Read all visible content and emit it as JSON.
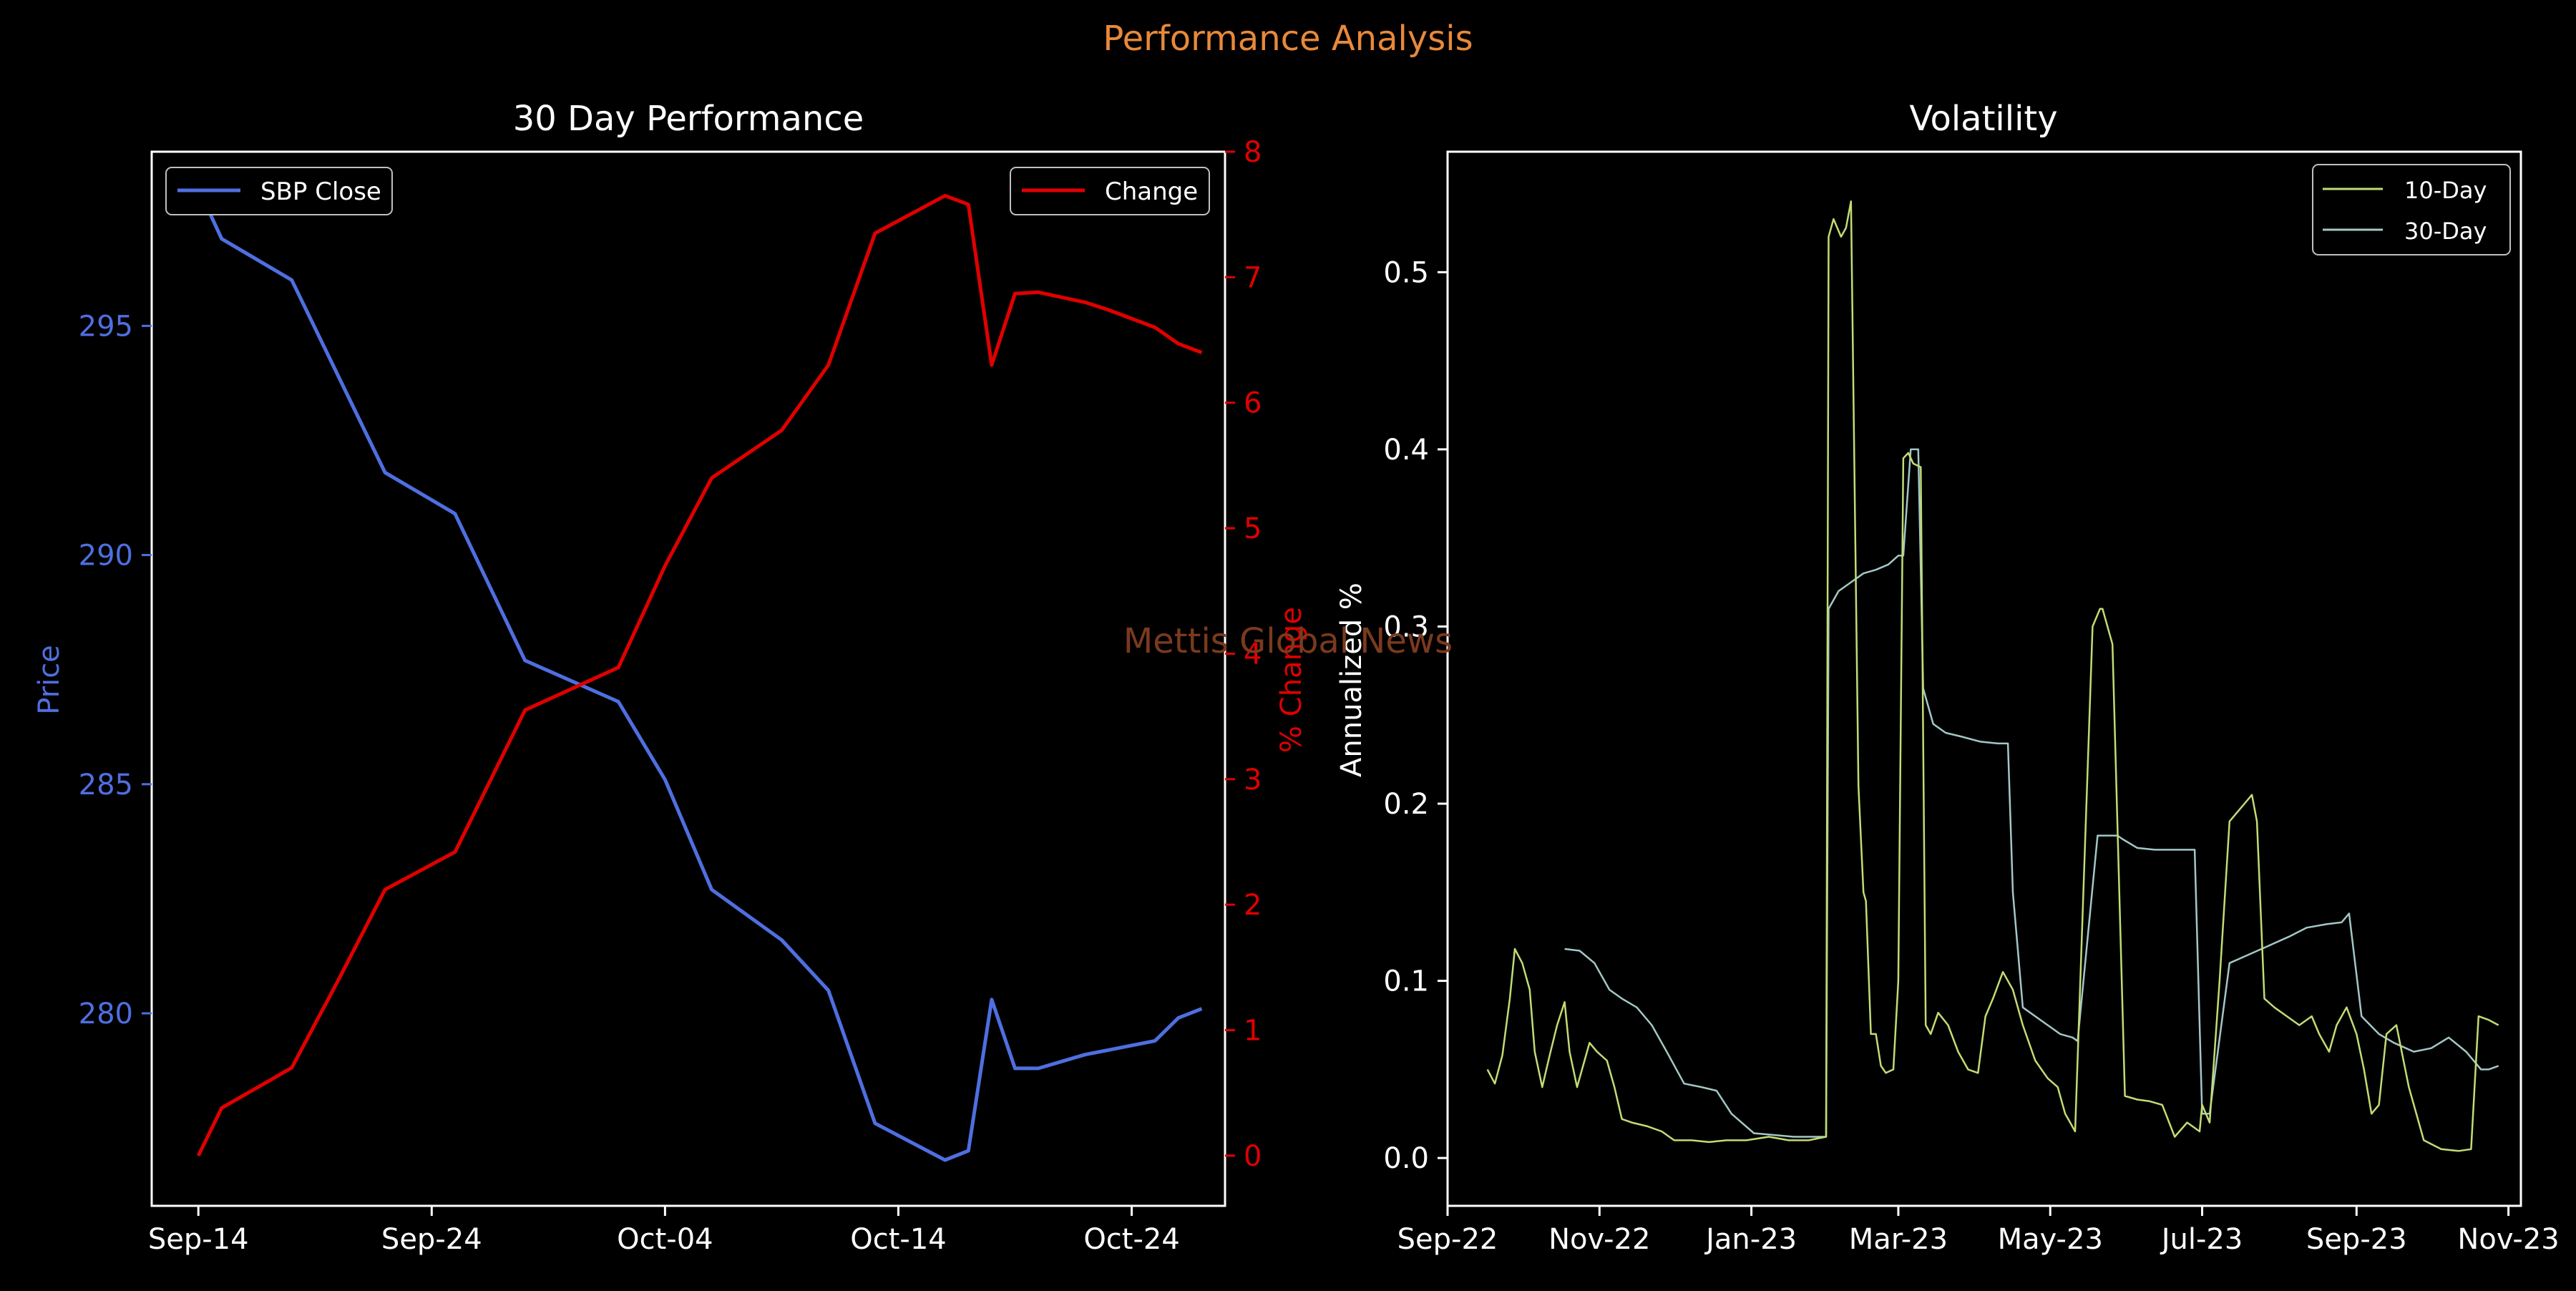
{
  "figure": {
    "suptitle": "Performance Analysis",
    "watermark": "Mettis Global News",
    "colors": {
      "background": "#000000",
      "suptitle": "#E8893A",
      "watermark": "#7A3A1E",
      "price": "#4F6FE0",
      "change": "#E00000",
      "vol10": "#C2DC74",
      "vol30": "#A3C7C6",
      "text": "#FFFFFF"
    }
  },
  "chart_data": [
    {
      "type": "line",
      "title": "30 Day Performance",
      "xlabel": "",
      "ylabel": "Price",
      "y2label": "% Change",
      "x_tick_labels": [
        "Sep-14",
        "Sep-24",
        "Oct-04",
        "Oct-14",
        "Oct-24"
      ],
      "x_ticks": [
        "2024-09-14",
        "2024-09-24",
        "2024-10-04",
        "2024-10-14",
        "2024-10-24"
      ],
      "xlim": [
        "2024-09-12",
        "2024-10-28"
      ],
      "ylim": [
        275.8,
        298.8
      ],
      "y_ticks": [
        280,
        285,
        290,
        295
      ],
      "y2lim": [
        -0.4,
        8.0
      ],
      "y2_ticks": [
        0,
        1,
        2,
        3,
        4,
        5,
        6,
        7,
        8
      ],
      "grid": false,
      "legend": [
        {
          "label": "SBP Close",
          "placement": "upper-left"
        },
        {
          "label": "Change",
          "placement": "upper-right"
        }
      ],
      "series": [
        {
          "name": "SBP Close",
          "axis": "left",
          "x": [
            "2024-09-14",
            "2024-09-15",
            "2024-09-18",
            "2024-09-20",
            "2024-09-22",
            "2024-09-25",
            "2024-09-28",
            "2024-10-02",
            "2024-10-04",
            "2024-10-06",
            "2024-10-09",
            "2024-10-11",
            "2024-10-13",
            "2024-10-16",
            "2024-10-17",
            "2024-10-18",
            "2024-10-19",
            "2024-10-20",
            "2024-10-22",
            "2024-10-23",
            "2024-10-25",
            "2024-10-26",
            "2024-10-27"
          ],
          "values": [
            298.0,
            296.9,
            296.0,
            293.9,
            291.8,
            290.9,
            287.7,
            286.8,
            285.1,
            282.7,
            281.6,
            280.5,
            277.6,
            276.8,
            277.0,
            280.3,
            278.8,
            278.8,
            279.1,
            279.2,
            279.4,
            279.9,
            280.1
          ]
        },
        {
          "name": "Change",
          "axis": "right",
          "x": [
            "2024-09-14",
            "2024-09-15",
            "2024-09-18",
            "2024-09-20",
            "2024-09-22",
            "2024-09-25",
            "2024-09-28",
            "2024-10-02",
            "2024-10-04",
            "2024-10-06",
            "2024-10-09",
            "2024-10-11",
            "2024-10-13",
            "2024-10-16",
            "2024-10-17",
            "2024-10-18",
            "2024-10-19",
            "2024-10-20",
            "2024-10-22",
            "2024-10-23",
            "2024-10-25",
            "2024-10-26",
            "2024-10-27"
          ],
          "values": [
            0.0,
            0.38,
            0.7,
            1.4,
            2.12,
            2.42,
            3.55,
            3.89,
            4.7,
            5.4,
            5.78,
            6.3,
            7.35,
            7.65,
            7.58,
            6.3,
            6.87,
            6.88,
            6.8,
            6.74,
            6.6,
            6.47,
            6.4
          ]
        }
      ]
    },
    {
      "type": "line",
      "title": "Volatility",
      "xlabel": "",
      "ylabel": "Annualized %",
      "x_tick_labels": [
        "Sep-22",
        "Nov-22",
        "Jan-23",
        "Mar-23",
        "May-23",
        "Jul-23",
        "Sep-23",
        "Nov-23"
      ],
      "x_ticks": [
        "2022-09-01",
        "2022-11-01",
        "2023-01-01",
        "2023-03-01",
        "2023-05-01",
        "2023-07-01",
        "2023-09-01",
        "2023-11-01"
      ],
      "xlim": [
        "2022-09-01",
        "2023-11-06"
      ],
      "ylim": [
        -0.027,
        0.568
      ],
      "y_ticks": [
        0.0,
        0.1,
        0.2,
        0.3,
        0.4,
        0.5
      ],
      "y_tick_labels": [
        "0.0",
        "0.1",
        "0.2",
        "0.3",
        "0.4",
        "0.5"
      ],
      "grid": false,
      "legend": [
        {
          "label": "10-Day",
          "placement": "upper-right"
        },
        {
          "label": "30-Day",
          "placement": "upper-right"
        }
      ],
      "series": [
        {
          "name": "10-Day",
          "x": [
            "2022-09-17",
            "2022-09-20",
            "2022-09-23",
            "2022-09-26",
            "2022-09-28",
            "2022-10-01",
            "2022-10-04",
            "2022-10-06",
            "2022-10-09",
            "2022-10-12",
            "2022-10-15",
            "2022-10-18",
            "2022-10-20",
            "2022-10-23",
            "2022-10-26",
            "2022-10-28",
            "2022-10-31",
            "2022-11-04",
            "2022-11-07",
            "2022-11-10",
            "2022-11-14",
            "2022-11-20",
            "2022-11-26",
            "2022-12-01",
            "2022-12-08",
            "2022-12-15",
            "2022-12-22",
            "2022-12-30",
            "2023-01-08",
            "2023-01-16",
            "2023-01-24",
            "2023-01-31",
            "2023-02-01",
            "2023-02-03",
            "2023-02-06",
            "2023-02-08",
            "2023-02-10",
            "2023-02-13",
            "2023-02-15",
            "2023-02-16",
            "2023-02-18",
            "2023-02-20",
            "2023-02-22",
            "2023-02-24",
            "2023-02-27",
            "2023-03-01",
            "2023-03-03",
            "2023-03-05",
            "2023-03-07",
            "2023-03-10",
            "2023-03-12",
            "2023-03-14",
            "2023-03-17",
            "2023-03-21",
            "2023-03-25",
            "2023-03-29",
            "2023-04-02",
            "2023-04-05",
            "2023-04-08",
            "2023-04-12",
            "2023-04-16",
            "2023-04-20",
            "2023-04-25",
            "2023-04-30",
            "2023-05-04",
            "2023-05-07",
            "2023-05-09",
            "2023-05-11",
            "2023-05-18",
            "2023-05-21",
            "2023-05-22",
            "2023-05-26",
            "2023-05-31",
            "2023-06-05",
            "2023-06-10",
            "2023-06-15",
            "2023-06-20",
            "2023-06-25",
            "2023-06-30",
            "2023-07-01",
            "2023-07-04",
            "2023-07-08",
            "2023-07-12",
            "2023-07-15",
            "2023-07-18",
            "2023-07-21",
            "2023-07-23",
            "2023-07-26",
            "2023-07-30",
            "2023-08-04",
            "2023-08-09",
            "2023-08-14",
            "2023-08-17",
            "2023-08-21",
            "2023-08-24",
            "2023-08-28",
            "2023-09-01",
            "2023-09-04",
            "2023-09-07",
            "2023-09-10",
            "2023-09-13",
            "2023-09-17",
            "2023-09-22",
            "2023-09-28",
            "2023-10-05",
            "2023-10-12",
            "2023-10-17",
            "2023-10-20",
            "2023-10-24",
            "2023-10-28"
          ],
          "values": [
            0.05,
            0.042,
            0.058,
            0.09,
            0.118,
            0.11,
            0.095,
            0.06,
            0.04,
            0.058,
            0.075,
            0.088,
            0.06,
            0.04,
            0.055,
            0.065,
            0.06,
            0.055,
            0.04,
            0.022,
            0.02,
            0.018,
            0.015,
            0.01,
            0.01,
            0.009,
            0.01,
            0.01,
            0.012,
            0.01,
            0.01,
            0.012,
            0.52,
            0.53,
            0.52,
            0.525,
            0.54,
            0.21,
            0.15,
            0.145,
            0.07,
            0.07,
            0.052,
            0.048,
            0.05,
            0.1,
            0.395,
            0.398,
            0.392,
            0.39,
            0.075,
            0.07,
            0.082,
            0.075,
            0.06,
            0.05,
            0.048,
            0.08,
            0.09,
            0.105,
            0.095,
            0.075,
            0.055,
            0.045,
            0.04,
            0.025,
            0.02,
            0.015,
            0.3,
            0.31,
            0.31,
            0.29,
            0.035,
            0.033,
            0.032,
            0.03,
            0.012,
            0.02,
            0.015,
            0.03,
            0.02,
            0.1,
            0.19,
            0.195,
            0.2,
            0.205,
            0.19,
            0.09,
            0.085,
            0.08,
            0.075,
            0.08,
            0.07,
            0.06,
            0.075,
            0.085,
            0.07,
            0.05,
            0.025,
            0.03,
            0.07,
            0.075,
            0.04,
            0.01,
            0.005,
            0.004,
            0.005,
            0.08,
            0.078,
            0.075
          ]
        },
        {
          "name": "30-Day",
          "x": [
            "2022-10-18",
            "2022-10-24",
            "2022-10-30",
            "2022-11-05",
            "2022-11-10",
            "2022-11-16",
            "2022-11-22",
            "2022-11-28",
            "2022-12-05",
            "2022-12-12",
            "2022-12-18",
            "2022-12-24",
            "2023-01-02",
            "2023-01-10",
            "2023-01-18",
            "2023-01-25",
            "2023-01-31",
            "2023-02-01",
            "2023-02-05",
            "2023-02-10",
            "2023-02-15",
            "2023-02-20",
            "2023-02-25",
            "2023-03-01",
            "2023-03-03",
            "2023-03-06",
            "2023-03-09",
            "2023-03-11",
            "2023-03-15",
            "2023-03-20",
            "2023-03-26",
            "2023-04-03",
            "2023-04-10",
            "2023-04-14",
            "2023-04-16",
            "2023-04-20",
            "2023-04-27",
            "2023-05-05",
            "2023-05-10",
            "2023-05-12",
            "2023-05-20",
            "2023-05-28",
            "2023-05-30",
            "2023-06-05",
            "2023-06-12",
            "2023-06-18",
            "2023-06-24",
            "2023-06-28",
            "2023-07-01",
            "2023-07-04",
            "2023-07-12",
            "2023-07-20",
            "2023-07-28",
            "2023-08-05",
            "2023-08-12",
            "2023-08-20",
            "2023-08-26",
            "2023-08-29",
            "2023-09-03",
            "2023-09-10",
            "2023-09-16",
            "2023-09-24",
            "2023-10-01",
            "2023-10-08",
            "2023-10-15",
            "2023-10-21",
            "2023-10-24",
            "2023-10-28"
          ],
          "values": [
            0.118,
            0.117,
            0.11,
            0.095,
            0.09,
            0.085,
            0.075,
            0.06,
            0.042,
            0.04,
            0.038,
            0.025,
            0.014,
            0.013,
            0.012,
            0.012,
            0.012,
            0.31,
            0.32,
            0.325,
            0.33,
            0.332,
            0.335,
            0.34,
            0.34,
            0.4,
            0.4,
            0.265,
            0.245,
            0.24,
            0.238,
            0.235,
            0.234,
            0.234,
            0.15,
            0.085,
            0.078,
            0.07,
            0.068,
            0.066,
            0.182,
            0.182,
            0.18,
            0.175,
            0.174,
            0.174,
            0.174,
            0.174,
            0.025,
            0.025,
            0.11,
            0.115,
            0.12,
            0.125,
            0.13,
            0.132,
            0.133,
            0.138,
            0.08,
            0.07,
            0.065,
            0.06,
            0.062,
            0.068,
            0.06,
            0.05,
            0.05,
            0.052
          ]
        }
      ]
    }
  ]
}
